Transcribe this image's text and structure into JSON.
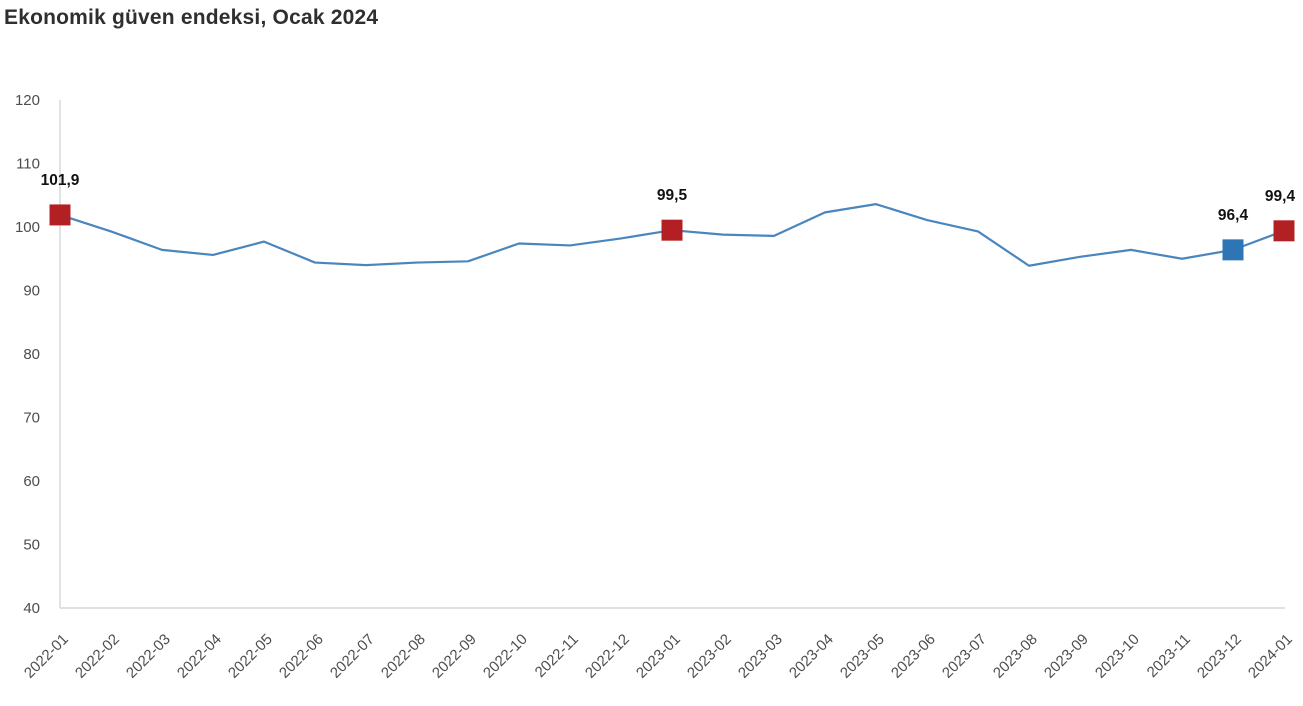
{
  "title": "Ekonomik güven endeksi, Ocak 2024",
  "colors": {
    "line": "#4a86be",
    "marker_red": "#b22024",
    "marker_blue": "#2e75b6",
    "axis": "#d6d6d6",
    "tick_text": "#4d4d4d",
    "data_label_text": "#111111",
    "title_text": "#2f2f2f"
  },
  "chart_data": {
    "type": "line",
    "title": "Ekonomik güven endeksi, Ocak 2024",
    "xlabel": "",
    "ylabel": "",
    "ylim": [
      40,
      120
    ],
    "yticks": [
      40,
      50,
      60,
      70,
      80,
      90,
      100,
      110,
      120
    ],
    "grid": false,
    "legend": "none",
    "x": [
      "2022-01",
      "2022-02",
      "2022-03",
      "2022-04",
      "2022-05",
      "2022-06",
      "2022-07",
      "2022-08",
      "2022-09",
      "2022-10",
      "2022-11",
      "2022-12",
      "2023-01",
      "2023-02",
      "2023-03",
      "2023-04",
      "2023-05",
      "2023-06",
      "2023-07",
      "2023-08",
      "2023-09",
      "2023-10",
      "2023-11",
      "2023-12",
      "2024-01"
    ],
    "series": [
      {
        "name": "Ekonomik güven endeksi",
        "values": [
          101.9,
          99.3,
          96.4,
          95.6,
          97.7,
          94.4,
          94.0,
          94.4,
          94.6,
          97.4,
          97.1,
          98.2,
          99.5,
          98.8,
          98.6,
          102.3,
          103.6,
          101.1,
          99.3,
          93.9,
          95.3,
          96.4,
          95.0,
          96.4,
          99.4
        ]
      }
    ],
    "annotations": [
      {
        "x": "2022-01",
        "label": "101,9",
        "marker": "red"
      },
      {
        "x": "2023-01",
        "label": "99,5",
        "marker": "red"
      },
      {
        "x": "2023-12",
        "label": "96,4",
        "marker": "blue"
      },
      {
        "x": "2024-01",
        "label": "99,4",
        "marker": "red"
      }
    ]
  }
}
